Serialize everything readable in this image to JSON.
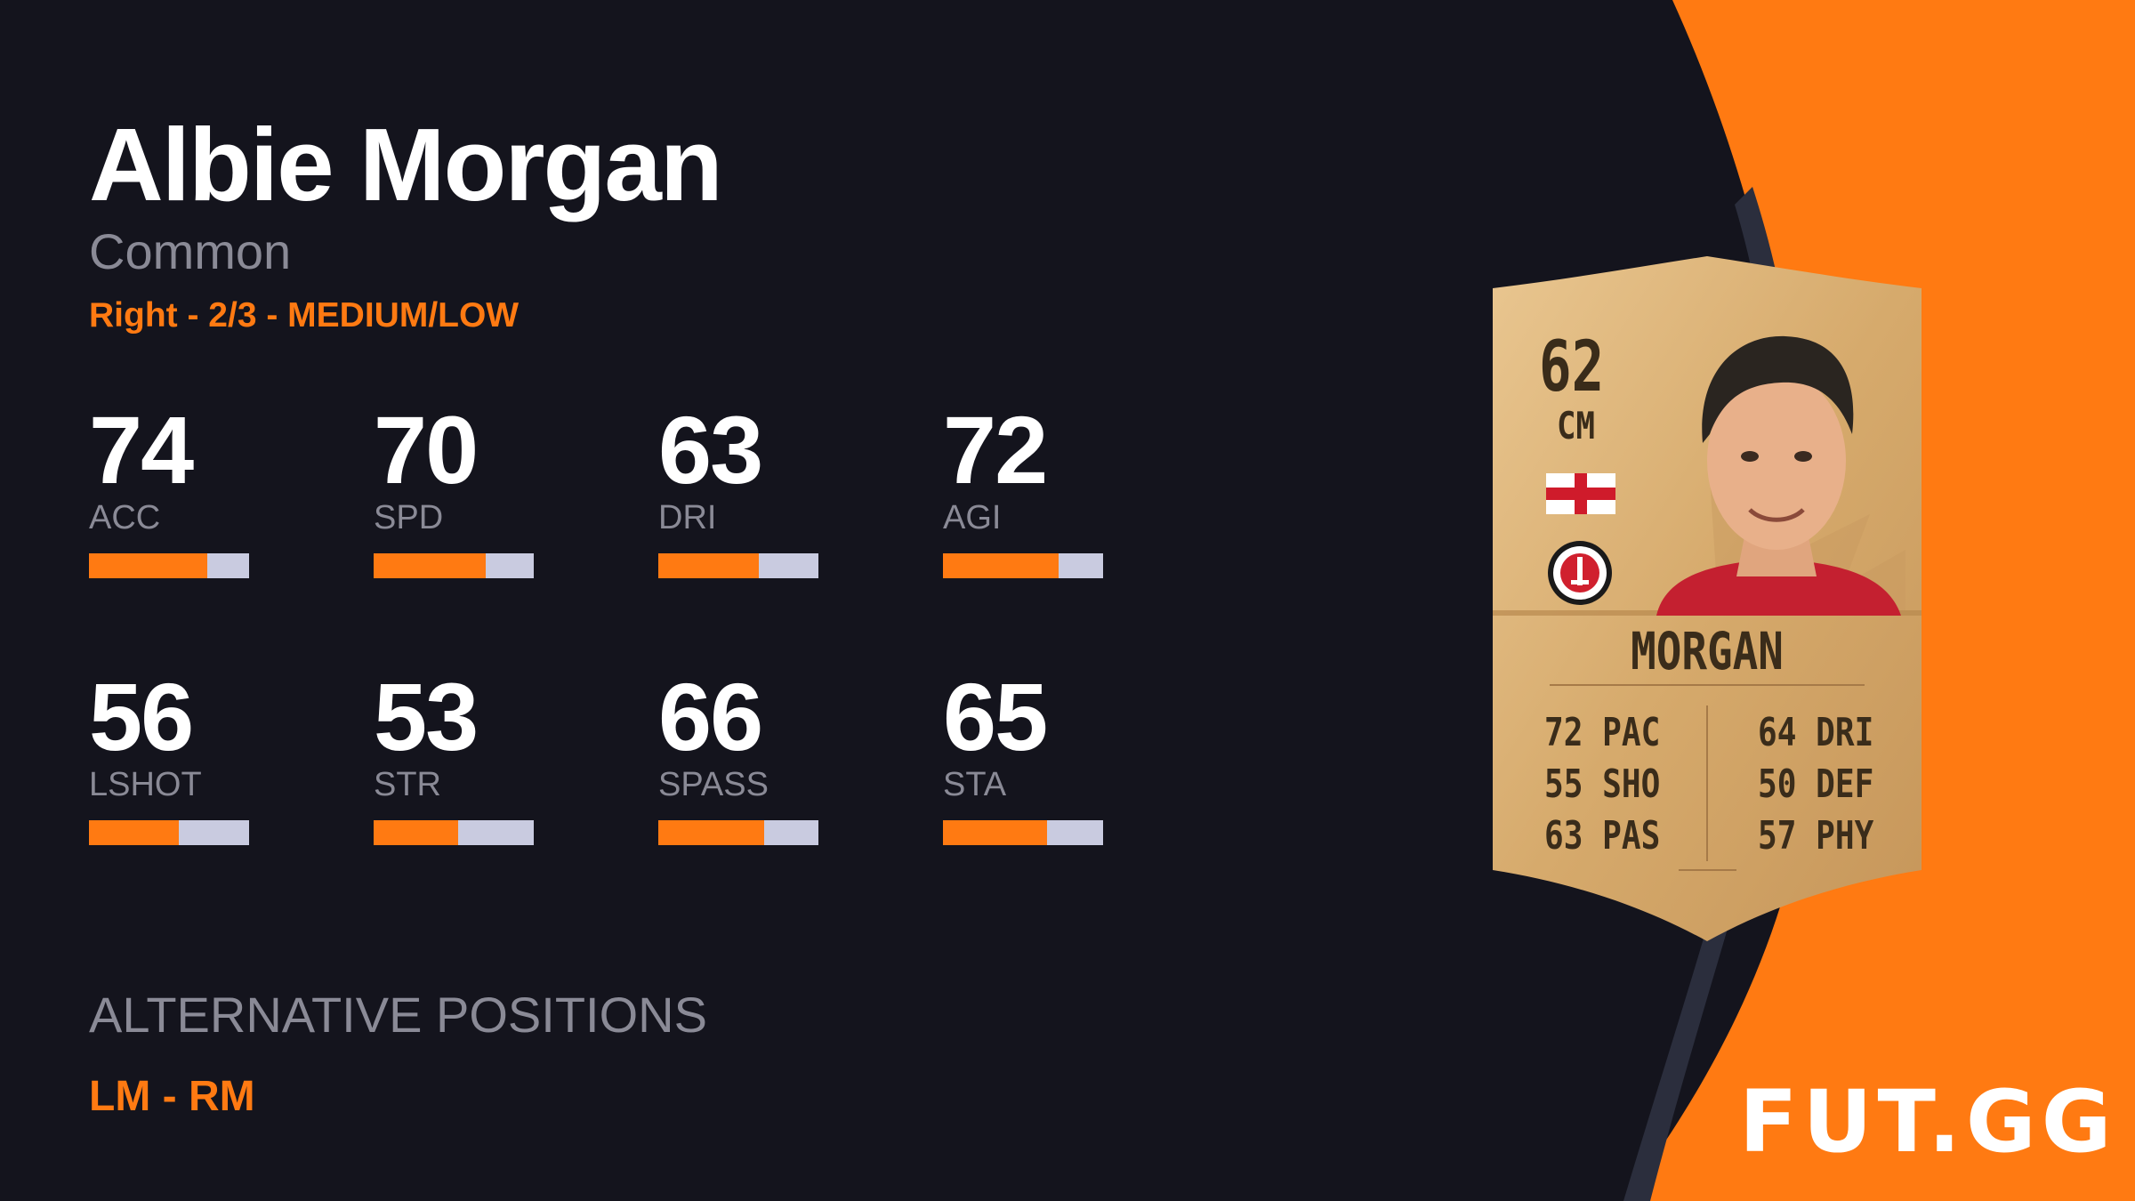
{
  "player": {
    "name": "Albie Morgan",
    "rarity": "Common",
    "info": "Right - 2/3 - MEDIUM/LOW"
  },
  "stats": [
    {
      "value": "74",
      "label": "ACC",
      "fill": 0.74
    },
    {
      "value": "70",
      "label": "SPD",
      "fill": 0.7
    },
    {
      "value": "63",
      "label": "DRI",
      "fill": 0.63
    },
    {
      "value": "72",
      "label": "AGI",
      "fill": 0.72
    },
    {
      "value": "56",
      "label": "LSHOT",
      "fill": 0.56
    },
    {
      "value": "53",
      "label": "STR",
      "fill": 0.53
    },
    {
      "value": "66",
      "label": "SPASS",
      "fill": 0.66
    },
    {
      "value": "65",
      "label": "STA",
      "fill": 0.65
    }
  ],
  "alternative": {
    "title": "ALTERNATIVE POSITIONS",
    "positions": "LM - RM"
  },
  "card": {
    "rating": "62",
    "position": "CM",
    "name": "MORGAN",
    "stats_left": [
      "72 PAC",
      "55 SHO",
      "63 PAS"
    ],
    "stats_right": [
      "64 DRI",
      "50 DEF",
      "57 PHY"
    ]
  },
  "brand": {
    "logo": "FUT.GG"
  },
  "colors": {
    "background": "#14141d",
    "accent": "#ff7a12",
    "bar_track": "#c9cbe0",
    "card_gold": "#d8ad72"
  }
}
